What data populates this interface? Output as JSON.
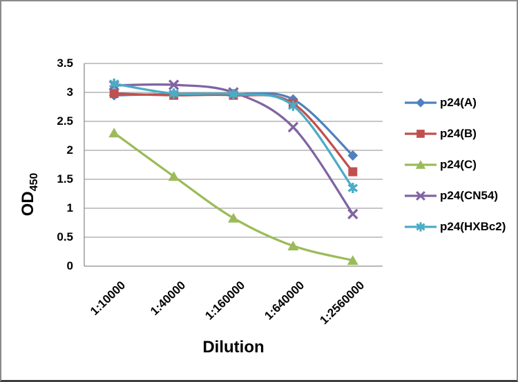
{
  "frame": {
    "background": "#ffffff",
    "border_color": "#8a8a8a",
    "bottom_border_color": "#3f3f3f"
  },
  "chart_data": {
    "type": "line",
    "title": "",
    "xlabel": "Dilution",
    "ylabel": "OD",
    "ylabel_subscript": "450",
    "categories": [
      "1:10000",
      "1:40000",
      "1:160000",
      "1:640000",
      "1:2560000"
    ],
    "y_ticks": [
      "3.5",
      "3",
      "2.5",
      "2",
      "1.5",
      "1",
      "0.5",
      "0"
    ],
    "ylim": [
      0,
      3.5
    ],
    "grid": true,
    "line_smoothing": true,
    "legend_position": "right",
    "grid_color": "#8c8c8c",
    "axis_color": "#8c8c8c",
    "text_color": "#000000",
    "series": [
      {
        "name": "p24(A)",
        "marker": "diamond",
        "color": "#4F81BD",
        "values": [
          2.95,
          2.97,
          2.97,
          2.88,
          1.91
        ]
      },
      {
        "name": "p24(B)",
        "marker": "square",
        "color": "#C0504D",
        "values": [
          2.98,
          2.95,
          2.95,
          2.81,
          1.63
        ]
      },
      {
        "name": "p24(C)",
        "marker": "triangle",
        "color": "#9BBB59",
        "values": [
          2.3,
          1.55,
          0.83,
          0.35,
          0.1
        ]
      },
      {
        "name": "p24(CN54)",
        "marker": "x",
        "color": "#8064A2",
        "values": [
          3.12,
          3.13,
          3.0,
          2.4,
          0.9
        ]
      },
      {
        "name": "p24(HXBc2)",
        "marker": "asterisk",
        "color": "#4BACC6",
        "values": [
          3.15,
          2.98,
          2.97,
          2.77,
          1.35
        ]
      }
    ]
  }
}
